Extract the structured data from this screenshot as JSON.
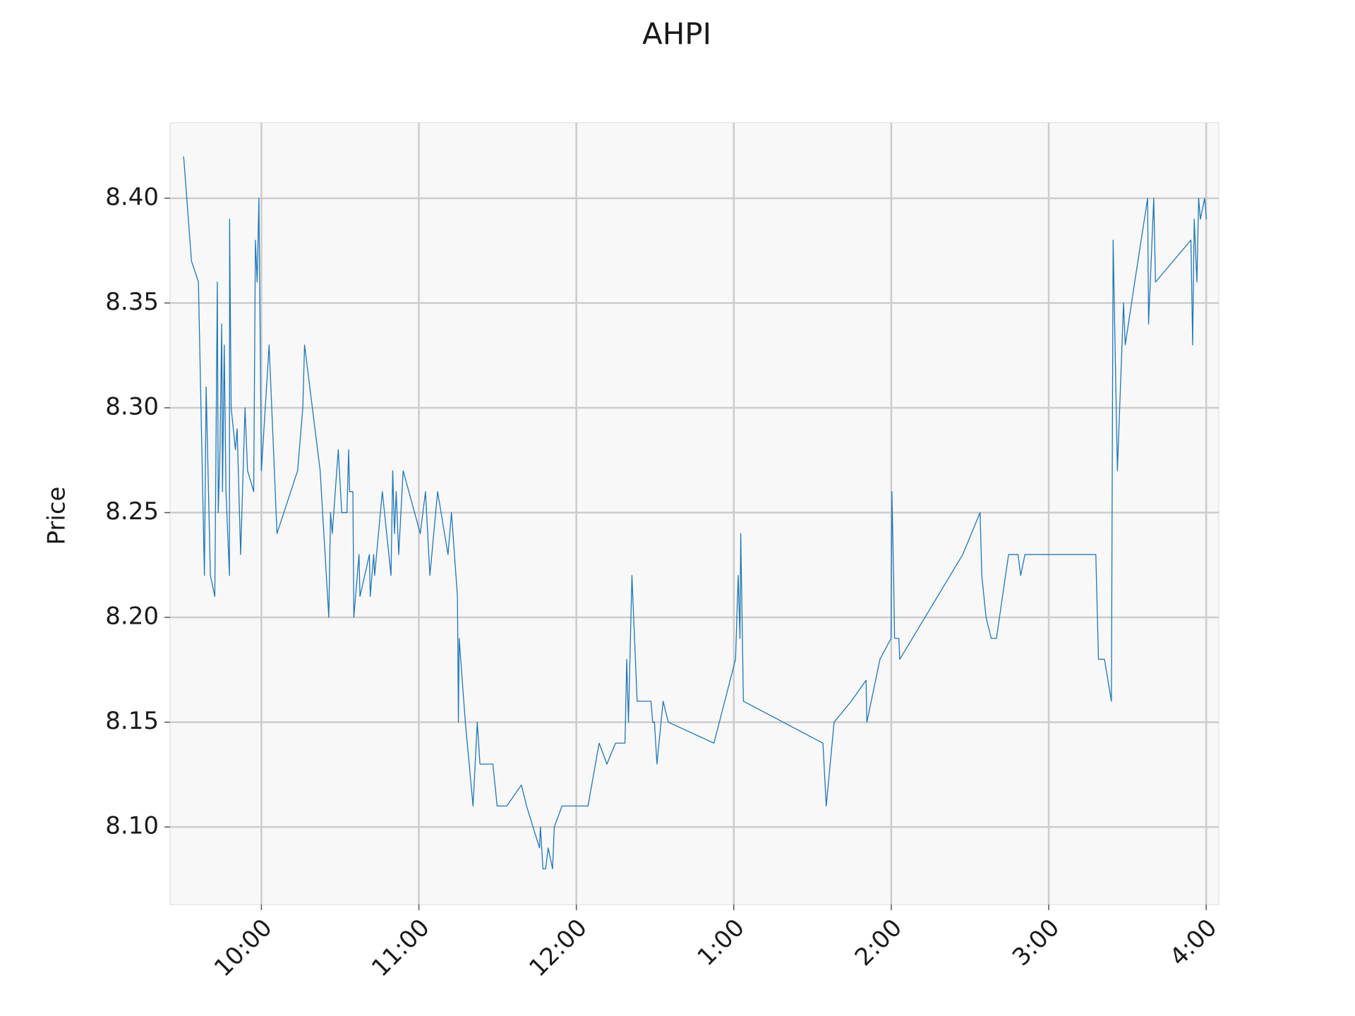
{
  "chart_data": {
    "type": "line",
    "title": "AHPI",
    "y_label": "Price",
    "color": "#1f77b4",
    "grid": true,
    "xlim": [
      9.42,
      16.08
    ],
    "ylim": [
      8.063,
      8.436
    ],
    "xticks": [
      {
        "value": 10,
        "label": "10:00"
      },
      {
        "value": 11,
        "label": "11:00"
      },
      {
        "value": 12,
        "label": "12:00"
      },
      {
        "value": 13,
        "label": "1:00"
      },
      {
        "value": 14,
        "label": "2:00"
      },
      {
        "value": 15,
        "label": "3:00"
      },
      {
        "value": 16,
        "label": "4:00"
      }
    ],
    "yticks": [
      {
        "value": 8.1,
        "label": "8.10"
      },
      8.15,
      {
        "value": 8.2,
        "label": "8.20"
      },
      8.25,
      {
        "value": 8.3,
        "label": "8.30"
      },
      8.35,
      {
        "value": 8.4,
        "label": "8.40"
      }
    ],
    "x": [
      9.506,
      9.556,
      9.6,
      9.638,
      9.649,
      9.676,
      9.704,
      9.72,
      9.726,
      9.737,
      9.748,
      9.753,
      9.764,
      9.775,
      9.797,
      9.798,
      9.808,
      9.835,
      9.846,
      9.868,
      9.896,
      9.912,
      9.951,
      9.962,
      9.973,
      9.984,
      10.0,
      10.049,
      10.099,
      10.23,
      10.263,
      10.274,
      10.373,
      10.428,
      10.439,
      10.45,
      10.488,
      10.51,
      10.543,
      10.554,
      10.56,
      10.581,
      10.587,
      10.62,
      10.626,
      10.686,
      10.691,
      10.713,
      10.719,
      10.768,
      10.823,
      10.834,
      10.845,
      10.856,
      10.872,
      10.9,
      11.009,
      11.042,
      11.07,
      11.119,
      11.185,
      11.207,
      11.245,
      11.251,
      11.256,
      11.295,
      11.344,
      11.371,
      11.388,
      11.47,
      11.497,
      11.558,
      11.651,
      11.684,
      11.766,
      11.772,
      11.788,
      11.805,
      11.821,
      11.849,
      11.86,
      11.909,
      12.074,
      12.145,
      12.194,
      12.249,
      12.309,
      12.32,
      12.331,
      12.353,
      12.386,
      12.474,
      12.485,
      12.496,
      12.512,
      12.551,
      12.584,
      12.874,
      13.011,
      13.028,
      13.039,
      13.044,
      13.061,
      13.566,
      13.587,
      13.637,
      13.746,
      13.84,
      13.845,
      13.928,
      13.999,
      14.004,
      14.015,
      14.021,
      14.048,
      14.054,
      14.454,
      14.564,
      14.575,
      14.602,
      14.635,
      14.668,
      14.745,
      14.805,
      14.822,
      14.849,
      15.299,
      15.316,
      15.354,
      15.398,
      15.409,
      15.436,
      15.475,
      15.486,
      15.546,
      15.628,
      15.634,
      15.667,
      15.678,
      15.903,
      15.914,
      15.924,
      15.941,
      15.952,
      15.963,
      15.99,
      16.001
    ],
    "values": [
      8.42,
      8.37,
      8.36,
      8.22,
      8.31,
      8.22,
      8.21,
      8.36,
      8.25,
      8.28,
      8.34,
      8.26,
      8.33,
      8.26,
      8.22,
      8.39,
      8.3,
      8.28,
      8.29,
      8.23,
      8.3,
      8.27,
      8.26,
      8.38,
      8.36,
      8.4,
      8.27,
      8.33,
      8.24,
      8.27,
      8.3,
      8.33,
      8.27,
      8.2,
      8.25,
      8.24,
      8.28,
      8.25,
      8.25,
      8.28,
      8.26,
      8.26,
      8.2,
      8.23,
      8.21,
      8.23,
      8.21,
      8.23,
      8.22,
      8.26,
      8.22,
      8.27,
      8.24,
      8.26,
      8.23,
      8.27,
      8.24,
      8.26,
      8.22,
      8.26,
      8.23,
      8.25,
      8.21,
      8.15,
      8.19,
      8.15,
      8.11,
      8.15,
      8.13,
      8.13,
      8.11,
      8.11,
      8.12,
      8.11,
      8.09,
      8.1,
      8.08,
      8.08,
      8.09,
      8.08,
      8.1,
      8.11,
      8.11,
      8.14,
      8.13,
      8.14,
      8.14,
      8.18,
      8.15,
      8.22,
      8.16,
      8.16,
      8.15,
      8.15,
      8.13,
      8.16,
      8.15,
      8.14,
      8.18,
      8.22,
      8.19,
      8.24,
      8.16,
      8.14,
      8.11,
      8.15,
      8.16,
      8.17,
      8.15,
      8.18,
      8.19,
      8.26,
      8.22,
      8.19,
      8.19,
      8.18,
      8.23,
      8.25,
      8.22,
      8.2,
      8.19,
      8.19,
      8.23,
      8.23,
      8.22,
      8.23,
      8.23,
      8.18,
      8.18,
      8.16,
      8.38,
      8.27,
      8.35,
      8.33,
      8.36,
      8.4,
      8.34,
      8.4,
      8.36,
      8.38,
      8.33,
      8.39,
      8.36,
      8.4,
      8.39,
      8.4,
      8.39
    ]
  }
}
